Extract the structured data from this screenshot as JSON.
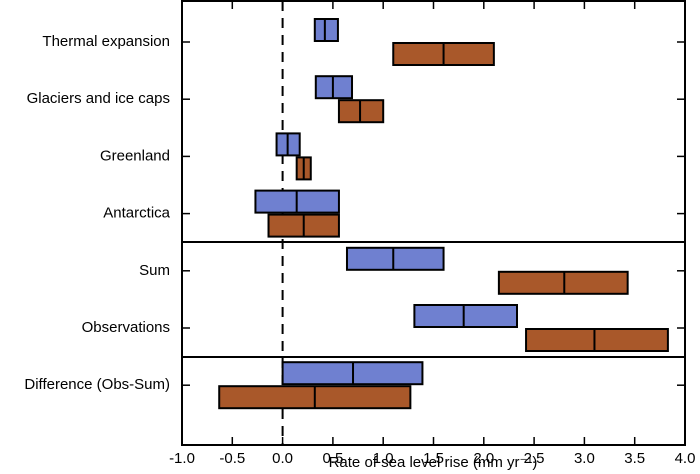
{
  "chart_data": {
    "type": "range-bar",
    "xlabel": "Rate of sea level rise (mm yr⁻¹)",
    "categories": [
      "Thermal expansion",
      "Glaciers and ice caps",
      "Greenland",
      "Antarctica",
      "Sum",
      "Observations",
      "Difference (Obs-Sum)"
    ],
    "series": [
      {
        "color": "#6f80d0",
        "low": [
          0.32,
          0.33,
          -0.06,
          -0.27,
          0.64,
          1.31,
          0.0
        ],
        "mid": [
          0.42,
          0.5,
          0.05,
          0.14,
          1.1,
          1.8,
          0.7
        ],
        "high": [
          0.55,
          0.69,
          0.17,
          0.56,
          1.6,
          2.33,
          1.39
        ]
      },
      {
        "color": "#a9582a",
        "low": [
          1.1,
          0.56,
          0.14,
          -0.14,
          2.15,
          2.42,
          -0.63
        ],
        "mid": [
          1.6,
          0.77,
          0.21,
          0.21,
          2.8,
          3.1,
          0.32
        ],
        "high": [
          2.1,
          1.0,
          0.28,
          0.56,
          3.43,
          3.83,
          1.27
        ]
      }
    ],
    "xlim": [
      -1,
      4
    ],
    "xticks": [
      {
        "value": -1,
        "label": "-1.0"
      },
      -0.5,
      {
        "value": 0,
        "label": "0.0"
      },
      0.5,
      {
        "value": 1,
        "label": "1.0"
      },
      1.5,
      {
        "value": 2,
        "label": "2.0"
      },
      2.5,
      {
        "value": 3,
        "label": "3.0"
      },
      3.5,
      {
        "value": 4,
        "label": "4.0"
      }
    ]
  }
}
